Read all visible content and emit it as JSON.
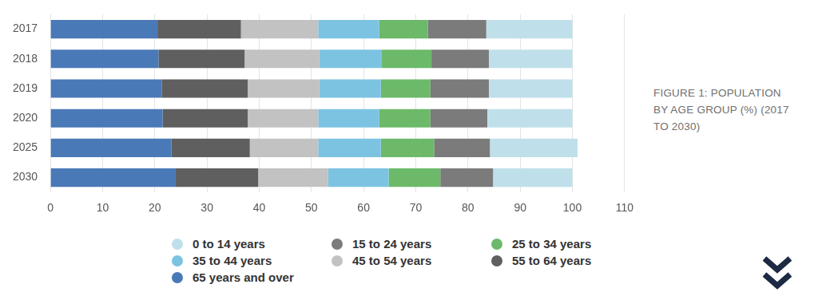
{
  "chart_data": {
    "type": "bar",
    "title": "FIGURE 1: POPULATION BY AGE GROUP (%) (2017 TO 2030)",
    "orientation": "horizontal",
    "stacked": true,
    "grid": true,
    "legend": "bottom",
    "categories": [
      "2017",
      "2018",
      "2019",
      "2020",
      "2025",
      "2030"
    ],
    "series": [
      {
        "name": "65 years and over",
        "color": "#4a79b7",
        "values": [
          20.5,
          20.7,
          21.3,
          21.5,
          23.2,
          24.0
        ]
      },
      {
        "name": "55 to 64 years",
        "color": "#5f5f5f",
        "values": [
          16.0,
          16.5,
          16.5,
          16.3,
          15.0,
          15.8
        ]
      },
      {
        "name": "45 to 54 years",
        "color": "#c2c2c2",
        "values": [
          14.8,
          14.3,
          13.7,
          13.5,
          13.1,
          13.4
        ]
      },
      {
        "name": "35 to 44 years",
        "color": "#7cc3e2",
        "values": [
          11.7,
          12.0,
          11.8,
          11.7,
          12.0,
          11.6
        ]
      },
      {
        "name": "25 to 34 years",
        "color": "#6cb96a",
        "values": [
          9.3,
          9.5,
          9.5,
          9.8,
          10.2,
          9.9
        ]
      },
      {
        "name": "15 to 24 years",
        "color": "#7b7b7b",
        "values": [
          11.2,
          11.0,
          11.2,
          10.9,
          10.7,
          10.1
        ]
      },
      {
        "name": "0 to 14 years",
        "color": "#bfe0ea",
        "values": [
          16.5,
          16.0,
          16.0,
          16.3,
          16.8,
          15.2
        ]
      }
    ],
    "xlim": [
      0,
      110
    ],
    "xticks": [
      0,
      10,
      20,
      30,
      40,
      50,
      60,
      70,
      80,
      90,
      100,
      110
    ]
  }
}
